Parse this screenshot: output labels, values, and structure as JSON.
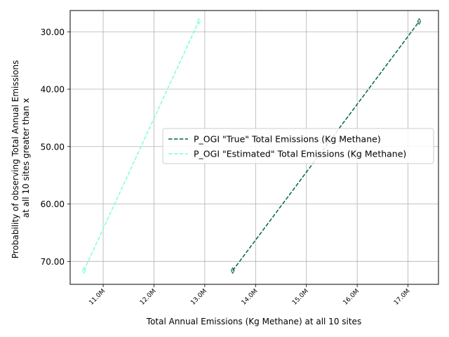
{
  "chart_data": {
    "type": "line",
    "xlabel": "Total Annual Emissions (Kg Methane) at all 10 sites",
    "ylabel_line1": "Probability of observing Total Annual Emissions",
    "ylabel_line2": "at all 10 sites greater than x",
    "xlim": [
      10.35,
      17.6
    ],
    "ylim": [
      74.0,
      26.3
    ],
    "y_inverted": true,
    "grid": true,
    "legend_position": "center-right",
    "x_ticks": [
      {
        "value": 11.0,
        "label": "11.0M"
      },
      {
        "value": 12.0,
        "label": "12.0M"
      },
      {
        "value": 13.0,
        "label": "13.0M"
      },
      {
        "value": 14.0,
        "label": "14.0M"
      },
      {
        "value": 15.0,
        "label": "15.0M"
      },
      {
        "value": 16.0,
        "label": "16.0M"
      },
      {
        "value": 17.0,
        "label": "17.0M"
      }
    ],
    "y_ticks": [
      {
        "value": 30,
        "label": "30.00"
      },
      {
        "value": 40,
        "label": "40.00"
      },
      {
        "value": 50,
        "label": "50.00"
      },
      {
        "value": 60,
        "label": "60.00"
      },
      {
        "value": 70,
        "label": "70.00"
      }
    ],
    "series": [
      {
        "name": "P_OGI \"True\" Total Emissions (Kg Methane)",
        "color": "#006837",
        "dash": "dashed",
        "marker": "thin-diamond",
        "points": [
          {
            "x": 13.55,
            "y": 71.6
          },
          {
            "x": 17.22,
            "y": 28.2
          }
        ]
      },
      {
        "name": "P_OGI \"Estimated\" Total Emissions (Kg Methane)",
        "color": "#7fffd4",
        "dash": "dashed",
        "marker": "thin-diamond",
        "points": [
          {
            "x": 10.62,
            "y": 71.6
          },
          {
            "x": 12.88,
            "y": 28.2
          }
        ]
      }
    ]
  }
}
